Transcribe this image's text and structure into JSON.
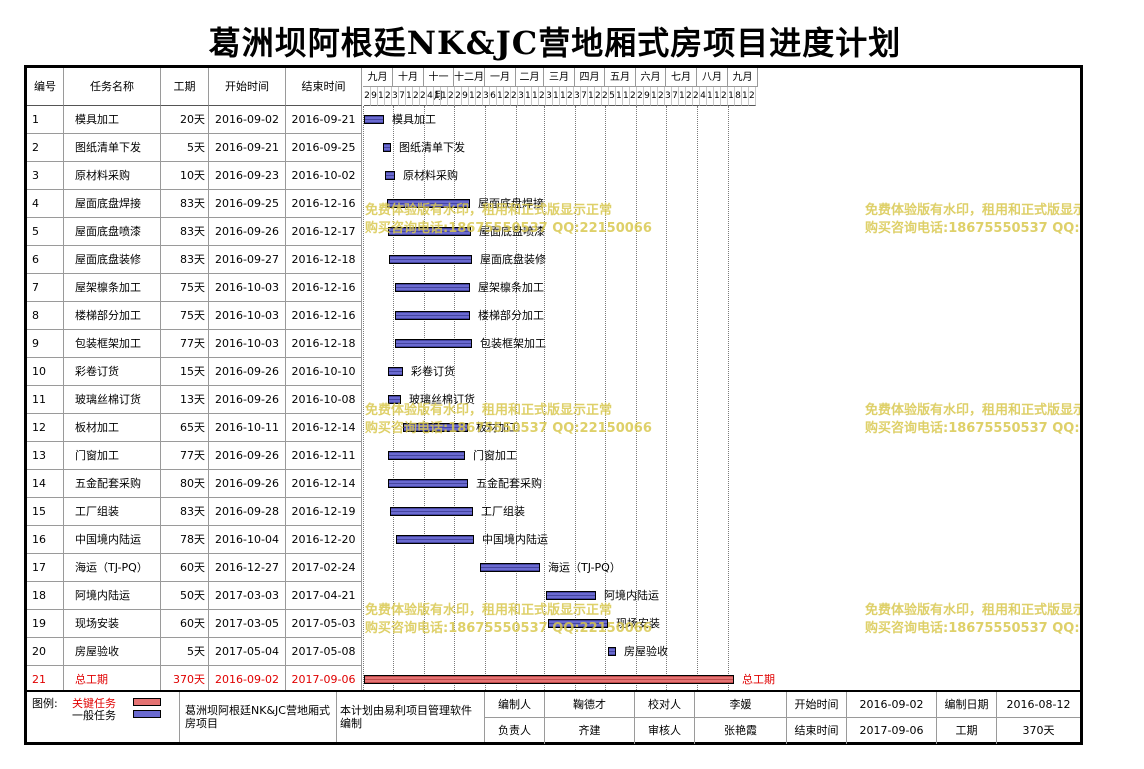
{
  "title": "葛洲坝阿根廷NK&JC营地厢式房项目进度计划",
  "columns": {
    "num": "编号",
    "name": "任务名称",
    "dur": "工期",
    "start": "开始时间",
    "end": "结束时间"
  },
  "timeline": {
    "months": [
      "九月",
      "十月",
      "十一月",
      "十二月",
      "一月",
      "二月",
      "三月",
      "四月",
      "五月",
      "六月",
      "七月",
      "八月",
      "九月"
    ],
    "ticks": [
      "2",
      "9",
      "16",
      "23",
      "30",
      "7",
      "14",
      "21",
      "28",
      "4",
      "11",
      "18",
      "25",
      "2",
      "9",
      "16",
      "23",
      "30",
      "6",
      "13",
      "20",
      "27",
      "3",
      "10",
      "17",
      "24",
      "3",
      "10",
      "17",
      "24",
      "31",
      "7",
      "14",
      "21",
      "28",
      "5",
      "12",
      "19",
      "26",
      "2",
      "9",
      "16",
      "23",
      "30",
      "7",
      "14",
      "21",
      "28",
      "4",
      "11",
      "18",
      "25",
      "1",
      "8",
      "15",
      "22"
    ]
  },
  "tasks": [
    {
      "num": "1",
      "name": "模具加工",
      "dur": "20天",
      "start": "2016-09-02",
      "end": "2016-09-21",
      "type": "normal"
    },
    {
      "num": "2",
      "name": "图纸清单下发",
      "dur": "5天",
      "start": "2016-09-21",
      "end": "2016-09-25",
      "type": "normal"
    },
    {
      "num": "3",
      "name": "原材料采购",
      "dur": "10天",
      "start": "2016-09-23",
      "end": "2016-10-02",
      "type": "normal"
    },
    {
      "num": "4",
      "name": "屋面底盘焊接",
      "dur": "83天",
      "start": "2016-09-25",
      "end": "2016-12-16",
      "type": "normal"
    },
    {
      "num": "5",
      "name": "屋面底盘喷漆",
      "dur": "83天",
      "start": "2016-09-26",
      "end": "2016-12-17",
      "type": "normal"
    },
    {
      "num": "6",
      "name": "屋面底盘装修",
      "dur": "83天",
      "start": "2016-09-27",
      "end": "2016-12-18",
      "type": "normal"
    },
    {
      "num": "7",
      "name": "屋架檩条加工",
      "dur": "75天",
      "start": "2016-10-03",
      "end": "2016-12-16",
      "type": "normal"
    },
    {
      "num": "8",
      "name": "楼梯部分加工",
      "dur": "75天",
      "start": "2016-10-03",
      "end": "2016-12-16",
      "type": "normal"
    },
    {
      "num": "9",
      "name": "包装框架加工",
      "dur": "77天",
      "start": "2016-10-03",
      "end": "2016-12-18",
      "type": "normal"
    },
    {
      "num": "10",
      "name": "彩卷订货",
      "dur": "15天",
      "start": "2016-09-26",
      "end": "2016-10-10",
      "type": "normal"
    },
    {
      "num": "11",
      "name": "玻璃丝棉订货",
      "dur": "13天",
      "start": "2016-09-26",
      "end": "2016-10-08",
      "type": "normal"
    },
    {
      "num": "12",
      "name": "板材加工",
      "dur": "65天",
      "start": "2016-10-11",
      "end": "2016-12-14",
      "type": "normal"
    },
    {
      "num": "13",
      "name": "门窗加工",
      "dur": "77天",
      "start": "2016-09-26",
      "end": "2016-12-11",
      "type": "normal"
    },
    {
      "num": "14",
      "name": "五金配套采购",
      "dur": "80天",
      "start": "2016-09-26",
      "end": "2016-12-14",
      "type": "normal"
    },
    {
      "num": "15",
      "name": "工厂组装",
      "dur": "83天",
      "start": "2016-09-28",
      "end": "2016-12-19",
      "type": "normal"
    },
    {
      "num": "16",
      "name": "中国境内陆运",
      "dur": "78天",
      "start": "2016-10-04",
      "end": "2016-12-20",
      "type": "normal"
    },
    {
      "num": "17",
      "name": "海运（TJ-PQ）",
      "dur": "60天",
      "start": "2016-12-27",
      "end": "2017-02-24",
      "type": "normal"
    },
    {
      "num": "18",
      "name": "阿境内陆运",
      "dur": "50天",
      "start": "2017-03-03",
      "end": "2017-04-21",
      "type": "normal"
    },
    {
      "num": "19",
      "name": "现场安装",
      "dur": "60天",
      "start": "2017-03-05",
      "end": "2017-05-03",
      "type": "normal"
    },
    {
      "num": "20",
      "name": "房屋验收",
      "dur": "5天",
      "start": "2017-05-04",
      "end": "2017-05-08",
      "type": "normal"
    },
    {
      "num": "21",
      "name": "总工期",
      "dur": "370天",
      "start": "2016-09-02",
      "end": "2017-09-06",
      "type": "critical"
    }
  ],
  "watermark": {
    "line1": "免费体验版有水印，租用和正式版显示正常",
    "line2": "购买咨询电话:18675550537 QQ:22150066"
  },
  "footer": {
    "legend_label": "图例:",
    "legend_critical": "关键任务",
    "legend_normal": "一般任务",
    "project_name": "葛洲坝阿根廷NK&JC营地厢式房项目",
    "software_note": "本计划由易利项目管理软件编制",
    "editor_label": "编制人",
    "editor": "鞠德才",
    "proofreader_label": "校对人",
    "proofreader": "李媛",
    "start_label": "开始时间",
    "start": "2016-09-02",
    "date_label": "编制日期",
    "date": "2016-08-12",
    "owner_label": "负责人",
    "owner": "齐建",
    "reviewer_label": "审核人",
    "reviewer": "张艳霞",
    "end_label": "结束时间",
    "end": "2017-09-06",
    "duration_label": "工期",
    "duration": "370天"
  },
  "colors": {
    "critical": "#e57373",
    "normal": "#6a6ad0",
    "watermark": "#d9c84f",
    "critical_text": "#e00000"
  }
}
